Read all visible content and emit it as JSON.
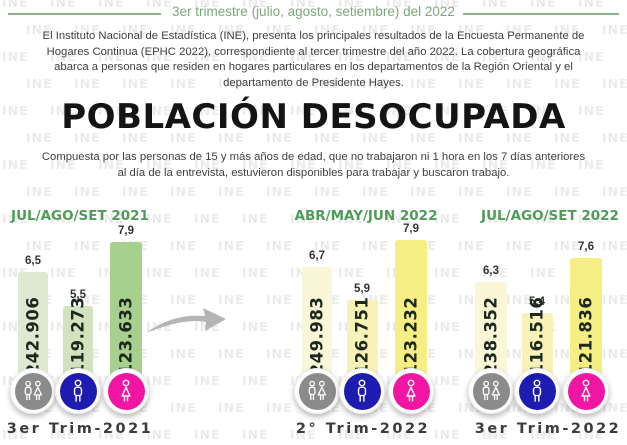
{
  "watermark_text": "INE",
  "header": {
    "top_line_text": "3er trimestre  (julio, agosto, setiembre) del 2022",
    "intro_paragraph": "El Instituto Nacional de Estadística (INE), presenta los principales resultados de la Encuesta Permanente de Hogares Continua (EPHC 2022), correspondiente al tercer trimestre del año 2022.  La cobertura geográfica abarca a personas que residen en hogares particulares en los departamentos de la Región Oriental y el departamento de Presidente Hayes."
  },
  "title": "POBLACIÓN DESOCUPADA",
  "subtitle": "Compuesta por las personas de 15 y más años de edad,  que no trabajaron ni 1 hora en los 7 días anteriores al día de la entrevista, estuvieron disponibles para trabajar y buscaron trabajo.",
  "colors": {
    "header_green": "#79a87b",
    "group_header_green": "#4f9c59",
    "bar_green_light": "#dde9d0",
    "bar_green_light2": "#d2e3c0",
    "bar_green_medium": "#a7cf8e",
    "bar_yellow_cream": "#f9f7d8",
    "bar_yellow_pale": "#f6f2b8",
    "bar_yellow_bright": "#f5ee82",
    "icon_total_gray": "#8b8b8b",
    "icon_male_blue": "#1e1cb0",
    "icon_female_pink": "#f215a3",
    "arrow_gray": "#b5b5b5"
  },
  "chart_data": {
    "type": "bar",
    "title": "POBLACIÓN DESOCUPADA",
    "value_unit": "tasa (%) y cantidad de personas",
    "groups": [
      {
        "period": "JUL/AGO/SET 2021",
        "footer": "3er Trim-2021",
        "series": [
          {
            "icon": "men-women-icon",
            "rate_pct": 6.5,
            "rate_label": "6,5",
            "count": 242906,
            "count_label": "242.906"
          },
          {
            "icon": "man-icon",
            "rate_pct": 5.5,
            "rate_label": "5,5",
            "count": 119273,
            "count_label": "119.273"
          },
          {
            "icon": "woman-icon",
            "rate_pct": 7.9,
            "rate_label": "7,9",
            "count": 123633,
            "count_label": "123.633"
          }
        ]
      },
      {
        "period": "ABR/MAY/JUN 2022",
        "footer": "2° Trim-2022",
        "series": [
          {
            "icon": "men-women-icon",
            "rate_pct": 6.7,
            "rate_label": "6,7",
            "count": 249983,
            "count_label": "249.983"
          },
          {
            "icon": "man-icon",
            "rate_pct": 5.9,
            "rate_label": "5,9",
            "count": 126751,
            "count_label": "126.751"
          },
          {
            "icon": "woman-icon",
            "rate_pct": 7.9,
            "rate_label": "7,9",
            "count": 123232,
            "count_label": "123.232"
          }
        ]
      },
      {
        "period": "JUL/AGO/SET 2022",
        "footer": "3er Trim-2022",
        "series": [
          {
            "icon": "men-women-icon",
            "rate_pct": 6.3,
            "rate_label": "6,3",
            "count": 238352,
            "count_label": "238.352"
          },
          {
            "icon": "man-icon",
            "rate_pct": 5.4,
            "rate_label": "5,4",
            "count": 116516,
            "count_label": "116.516"
          },
          {
            "icon": "woman-icon",
            "rate_pct": 7.6,
            "rate_label": "7,6",
            "count": 121836,
            "count_label": "121.836"
          }
        ]
      }
    ]
  }
}
